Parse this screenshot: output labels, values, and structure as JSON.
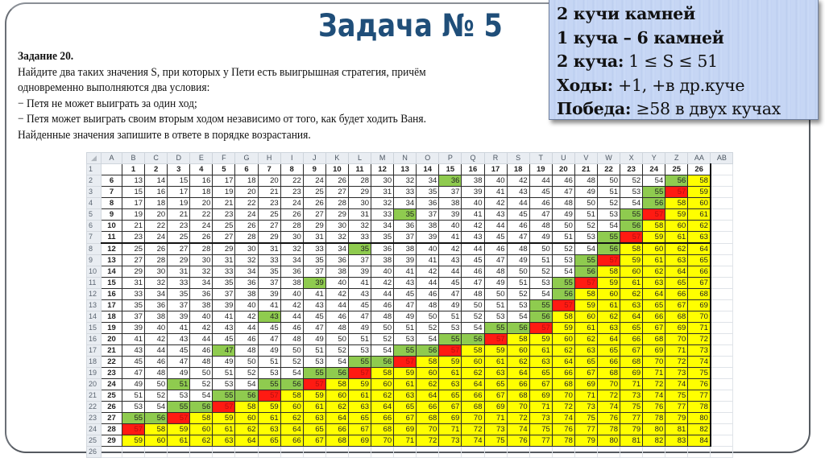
{
  "slide": {
    "title": "Задача № 5"
  },
  "task": {
    "heading": "Задание 20.",
    "lines": [
      "Найдите два таких значения S, при которых у Пети есть выигрышная стратегия, причём",
      "одновременно выполняются два условия:",
      "− Петя не может выиграть за один ход;",
      "− Петя может выиграть своим вторым ходом независимо от того, как будет ходить Ваня.",
      "Найденные значения запишите в ответе в порядке возрастания."
    ]
  },
  "info_box": {
    "line1": "2 кучи камней",
    "line2": "1 куча – 6 камней",
    "line3_bold": "2 куча:",
    "line3_rest": " 1 ≤ S ≤ 51",
    "line4_bold": "Ходы:",
    "line4_rest": " +1, +в др.куче",
    "line5_bold": "Победа:",
    "line5_rest": " ≥58 в двух кучах",
    "background": "#c6d6f4"
  },
  "colors": {
    "green": "#8fcb4f",
    "red": "#ff1a12",
    "yellow": "#ffff00",
    "title": "#1f4e79"
  },
  "sheet": {
    "column_letters": [
      "A",
      "B",
      "C",
      "D",
      "E",
      "F",
      "G",
      "H",
      "I",
      "J",
      "K",
      "L",
      "M",
      "N",
      "O",
      "P",
      "Q",
      "R",
      "S",
      "T",
      "U",
      "V",
      "W",
      "X",
      "Y",
      "Z",
      "AA",
      "AB"
    ],
    "header_row_number": "1",
    "header_values": [
      "1",
      "2",
      "3",
      "4",
      "5",
      "6",
      "7",
      "8",
      "9",
      "10",
      "11",
      "12",
      "13",
      "14",
      "15",
      "16",
      "17",
      "18",
      "19",
      "20",
      "21",
      "22",
      "23",
      "24",
      "25",
      "26"
    ],
    "color_legend": {
      ".": "white",
      "g": "green",
      "r": "red",
      "y": "yellow"
    },
    "rows": [
      {
        "rownum": "2",
        "label": "6",
        "values": [
          13,
          14,
          15,
          16,
          17,
          18,
          20,
          22,
          24,
          26,
          28,
          30,
          32,
          34,
          36,
          38,
          40,
          42,
          44,
          46,
          48,
          50,
          52,
          54,
          56,
          58
        ],
        "colors": "..............g.........gy"
      },
      {
        "rownum": "3",
        "label": "7",
        "values": [
          15,
          16,
          17,
          18,
          19,
          20,
          21,
          23,
          25,
          27,
          29,
          31,
          33,
          35,
          37,
          39,
          41,
          43,
          45,
          47,
          49,
          51,
          53,
          55,
          57,
          59
        ],
        "colors": ".......................gry"
      },
      {
        "rownum": "4",
        "label": "8",
        "values": [
          17,
          18,
          19,
          20,
          21,
          22,
          23,
          24,
          26,
          28,
          30,
          32,
          34,
          36,
          38,
          40,
          42,
          44,
          46,
          48,
          50,
          52,
          54,
          56,
          58,
          60
        ],
        "colors": ".......................gyy"
      },
      {
        "rownum": "5",
        "label": "9",
        "values": [
          19,
          20,
          21,
          22,
          23,
          24,
          25,
          26,
          27,
          29,
          31,
          33,
          35,
          37,
          39,
          41,
          43,
          45,
          47,
          49,
          51,
          53,
          55,
          57,
          59,
          61
        ],
        "colors": "............g.........gryy"
      },
      {
        "rownum": "6",
        "label": "10",
        "values": [
          21,
          22,
          23,
          24,
          25,
          26,
          27,
          28,
          29,
          30,
          32,
          34,
          36,
          38,
          40,
          42,
          44,
          46,
          48,
          50,
          52,
          54,
          56,
          58,
          60,
          62
        ],
        "colors": "......................gyyy"
      },
      {
        "rownum": "7",
        "label": "11",
        "values": [
          23,
          24,
          25,
          26,
          27,
          28,
          29,
          30,
          31,
          32,
          33,
          35,
          37,
          39,
          41,
          43,
          45,
          47,
          49,
          51,
          53,
          55,
          57,
          59,
          61,
          63
        ],
        "colors": ".....................gryyy"
      },
      {
        "rownum": "8",
        "label": "12",
        "values": [
          25,
          26,
          27,
          28,
          29,
          30,
          31,
          32,
          33,
          34,
          35,
          36,
          38,
          40,
          42,
          44,
          46,
          48,
          50,
          52,
          54,
          56,
          58,
          60,
          62,
          64
        ],
        "colors": "..........g..........gyyyy",
        "thick_top": true
      },
      {
        "rownum": "9",
        "label": "13",
        "values": [
          27,
          28,
          29,
          30,
          31,
          32,
          33,
          34,
          35,
          36,
          37,
          38,
          39,
          41,
          43,
          45,
          47,
          49,
          51,
          53,
          55,
          57,
          59,
          61,
          63,
          65
        ],
        "colors": "....................gryyyy"
      },
      {
        "rownum": "10",
        "label": "14",
        "values": [
          29,
          30,
          31,
          32,
          33,
          34,
          35,
          36,
          37,
          38,
          39,
          40,
          41,
          42,
          44,
          46,
          48,
          50,
          52,
          54,
          56,
          58,
          60,
          62,
          64,
          66
        ],
        "colors": "....................gyyyyy"
      },
      {
        "rownum": "11",
        "label": "15",
        "values": [
          31,
          32,
          33,
          34,
          35,
          36,
          37,
          38,
          39,
          40,
          41,
          42,
          43,
          44,
          45,
          47,
          49,
          51,
          53,
          55,
          57,
          59,
          61,
          63,
          65,
          67
        ],
        "colors": "........g..........gryyyyy"
      },
      {
        "rownum": "12",
        "label": "16",
        "values": [
          33,
          34,
          35,
          36,
          37,
          38,
          39,
          40,
          41,
          42,
          43,
          44,
          45,
          46,
          47,
          48,
          50,
          52,
          54,
          56,
          58,
          60,
          62,
          64,
          66,
          68
        ],
        "colors": "...................gyyyyyy"
      },
      {
        "rownum": "13",
        "label": "17",
        "values": [
          35,
          36,
          37,
          38,
          39,
          40,
          41,
          42,
          43,
          44,
          45,
          46,
          47,
          48,
          49,
          50,
          51,
          53,
          55,
          57,
          59,
          61,
          63,
          65,
          67,
          69
        ],
        "colors": "..................gryyyyyy"
      },
      {
        "rownum": "14",
        "label": "18",
        "values": [
          37,
          38,
          39,
          40,
          41,
          42,
          43,
          44,
          45,
          46,
          47,
          48,
          49,
          50,
          51,
          52,
          53,
          54,
          56,
          58,
          60,
          62,
          64,
          66,
          68,
          70
        ],
        "colors": "......g...........gyyyyyyy"
      },
      {
        "rownum": "15",
        "label": "19",
        "values": [
          39,
          40,
          41,
          42,
          43,
          44,
          45,
          46,
          47,
          48,
          49,
          50,
          51,
          52,
          53,
          54,
          55,
          56,
          57,
          59,
          61,
          63,
          65,
          67,
          69,
          71
        ],
        "colors": "................ggryyyyyyy"
      },
      {
        "rownum": "16",
        "label": "20",
        "values": [
          41,
          42,
          43,
          44,
          45,
          46,
          47,
          48,
          49,
          50,
          51,
          52,
          53,
          54,
          55,
          56,
          57,
          58,
          59,
          60,
          62,
          64,
          66,
          68,
          70,
          72
        ],
        "colors": "..............ggryyyyyyyyy"
      },
      {
        "rownum": "17",
        "label": "21",
        "values": [
          43,
          44,
          45,
          46,
          47,
          48,
          49,
          50,
          51,
          52,
          53,
          54,
          55,
          56,
          57,
          58,
          59,
          60,
          61,
          62,
          63,
          65,
          67,
          69,
          71,
          73
        ],
        "colors": "....g.......ggryyyyyyyyyyy"
      },
      {
        "rownum": "18",
        "label": "22",
        "values": [
          45,
          46,
          47,
          48,
          49,
          50,
          51,
          52,
          53,
          54,
          55,
          56,
          57,
          58,
          59,
          60,
          61,
          62,
          63,
          64,
          65,
          66,
          68,
          70,
          72,
          74
        ],
        "colors": "..........ggryyyyyyyyyyyyy"
      },
      {
        "rownum": "19",
        "label": "23",
        "values": [
          47,
          48,
          49,
          50,
          51,
          52,
          53,
          54,
          55,
          56,
          57,
          58,
          59,
          60,
          61,
          62,
          63,
          64,
          65,
          66,
          67,
          68,
          69,
          71,
          73,
          75
        ],
        "colors": "........ggryyyyyyyyyyyyyyy"
      },
      {
        "rownum": "20",
        "label": "24",
        "values": [
          49,
          50,
          51,
          52,
          53,
          54,
          55,
          56,
          57,
          58,
          59,
          60,
          61,
          62,
          63,
          64,
          65,
          66,
          67,
          68,
          69,
          70,
          71,
          72,
          74,
          76
        ],
        "colors": "..g...ggryyyyyyyyyyyyyyyyy"
      },
      {
        "rownum": "21",
        "label": "25",
        "values": [
          51,
          52,
          53,
          54,
          55,
          56,
          57,
          58,
          59,
          60,
          61,
          62,
          63,
          64,
          65,
          66,
          67,
          68,
          69,
          70,
          71,
          72,
          73,
          74,
          75,
          77
        ],
        "colors": "....ggryyyyyyyyyyyyyyyyyyy"
      },
      {
        "rownum": "22",
        "label": "26",
        "values": [
          53,
          54,
          55,
          56,
          57,
          58,
          59,
          60,
          61,
          62,
          63,
          64,
          65,
          66,
          67,
          68,
          69,
          70,
          71,
          72,
          73,
          74,
          75,
          76,
          77,
          78
        ],
        "colors": "..ggryyyyyyyyyyyyyyyyyyyyy"
      },
      {
        "rownum": "23",
        "label": "27",
        "values": [
          55,
          56,
          57,
          58,
          59,
          60,
          61,
          62,
          63,
          64,
          65,
          66,
          67,
          68,
          69,
          70,
          71,
          72,
          73,
          74,
          75,
          76,
          77,
          78,
          79,
          80
        ],
        "colors": "ggryyyyyyyyyyyyyyyyyyyyyyy"
      },
      {
        "rownum": "24",
        "label": "28",
        "values": [
          57,
          58,
          59,
          60,
          61,
          62,
          63,
          64,
          65,
          66,
          67,
          68,
          69,
          70,
          71,
          72,
          73,
          74,
          75,
          76,
          77,
          78,
          79,
          80,
          81,
          82
        ],
        "colors": "ryyyyyyyyyyyyyyyyyyyyyyyyy"
      },
      {
        "rownum": "25",
        "label": "29",
        "values": [
          59,
          60,
          61,
          62,
          63,
          64,
          65,
          66,
          67,
          68,
          69,
          70,
          71,
          72,
          73,
          74,
          75,
          76,
          77,
          78,
          79,
          80,
          81,
          82,
          83,
          84
        ],
        "colors": "yyyyyyyyyyyyyyyyyyyyyyyyyy"
      }
    ],
    "trailing_empty_row": "26"
  }
}
